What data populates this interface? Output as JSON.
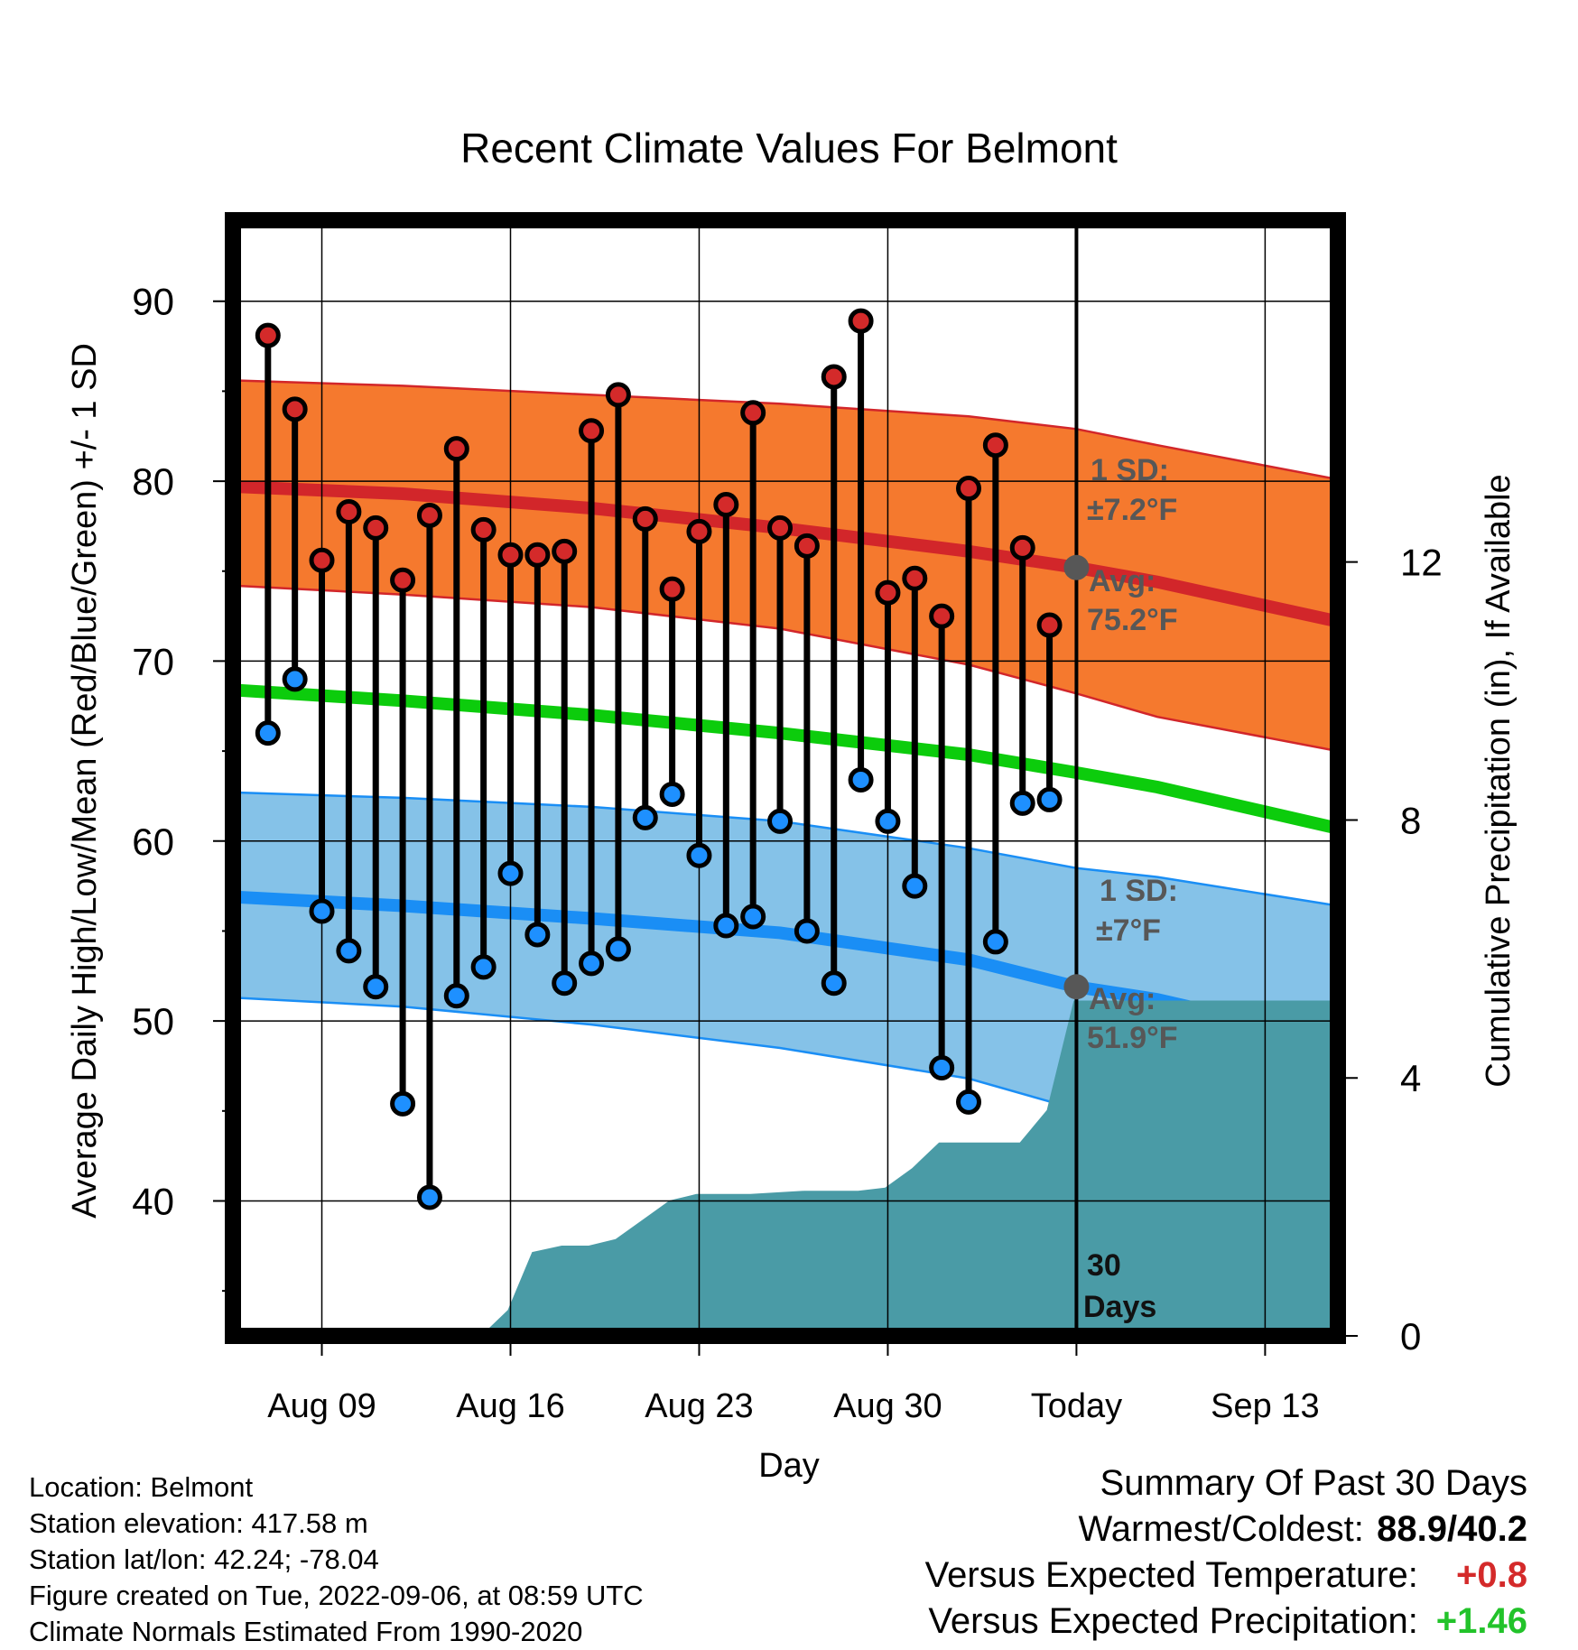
{
  "chart_data": {
    "type": "line",
    "title": "Recent Climate Values For Belmont",
    "xlabel": "Day",
    "ylabel": "Average Daily High/Low/Mean (Red/Blue/Green) +/- 1 SD",
    "y2label": "Cumulative Precipitation (in), If Available",
    "ylim": [
      32.5,
      94.5
    ],
    "y2lim": [
      0,
      17.3
    ],
    "yticks": [
      40,
      50,
      60,
      70,
      80,
      90
    ],
    "y2ticks": [
      0,
      4,
      8,
      12
    ],
    "x_tick_labels": [
      "Aug 09",
      "Aug 16",
      "Aug 23",
      "Aug 30",
      "Today",
      "Sep 13"
    ],
    "x_tick_days": [
      0,
      7,
      14,
      21,
      28,
      35
    ],
    "x_range_days": [
      -3.3,
      37.7
    ],
    "grid": true,
    "today_day": 28,
    "today_label": "30 Days",
    "days_observed": [
      -2,
      -1,
      0,
      1,
      2,
      3,
      4,
      5,
      6,
      7,
      8,
      9,
      10,
      11,
      12,
      13,
      14,
      15,
      16,
      17,
      18,
      19,
      20,
      21,
      22,
      23,
      24,
      25,
      26,
      27
    ],
    "observed_high": [
      88.1,
      84.0,
      75.6,
      78.3,
      77.4,
      74.5,
      78.1,
      81.8,
      77.3,
      75.9,
      75.9,
      76.1,
      82.8,
      84.8,
      77.9,
      74.0,
      77.2,
      78.7,
      83.8,
      77.4,
      76.4,
      85.8,
      88.9,
      73.8,
      74.6,
      72.5,
      79.6,
      82.0,
      76.3,
      72.0
    ],
    "observed_low": [
      66.0,
      69.0,
      56.1,
      53.9,
      51.9,
      45.4,
      40.2,
      51.4,
      53.0,
      58.2,
      54.8,
      52.1,
      53.2,
      54.0,
      61.3,
      62.6,
      59.2,
      55.3,
      55.8,
      61.1,
      55.0,
      52.1,
      63.4,
      61.1,
      57.5,
      47.4,
      45.5,
      54.4,
      62.1,
      62.3
    ],
    "normals_days": [
      -3.3,
      3,
      10,
      17,
      24,
      28,
      31,
      37.7
    ],
    "normal_high": [
      79.7,
      79.3,
      78.5,
      77.4,
      76.1,
      75.2,
      74.4,
      72.2
    ],
    "normal_high_upper": [
      85.6,
      85.3,
      84.8,
      84.3,
      83.6,
      82.9,
      82.0,
      80.1
    ],
    "normal_high_lower": [
      74.2,
      73.7,
      73.0,
      71.8,
      69.8,
      68.2,
      66.9,
      65.0
    ],
    "normal_mean": [
      68.4,
      67.8,
      67.0,
      66.0,
      64.8,
      63.8,
      63.0,
      60.7
    ],
    "normal_low": [
      56.9,
      56.4,
      55.7,
      54.9,
      53.4,
      51.9,
      51.2,
      48.9
    ],
    "normal_low_upper": [
      62.7,
      62.4,
      61.9,
      61.1,
      59.6,
      58.5,
      58.0,
      56.4
    ],
    "normal_low_lower": [
      51.3,
      50.8,
      49.8,
      48.5,
      46.8,
      45.1,
      44.0,
      41.6
    ],
    "precip_days": [
      -3.3,
      5.9,
      6.9,
      7.8,
      8.9,
      9.9,
      10.9,
      11.9,
      12.9,
      13.9,
      14.9,
      15.9,
      17.9,
      18.9,
      19.9,
      20.9,
      21.9,
      22.9,
      23.9,
      24.9,
      25.9,
      26.9,
      27.9,
      37.7
    ],
    "precip_cumulative": [
      0,
      0,
      0.4,
      1.3,
      1.4,
      1.4,
      1.5,
      1.8,
      2.1,
      2.2,
      2.2,
      2.2,
      2.25,
      2.25,
      2.25,
      2.3,
      2.6,
      3.0,
      3.0,
      3.0,
      3.0,
      3.5,
      5.2,
      5.2
    ],
    "annotations": {
      "high_sd_label": "1 SD:",
      "high_sd_value": "±7.2°F",
      "high_avg_label": "Avg:",
      "high_avg_value": "75.2°F",
      "low_sd_label": "1 SD:",
      "low_sd_value": "±7°F",
      "low_avg_label": "Avg:",
      "low_avg_value": "51.9°F"
    },
    "colors": {
      "high_band": "#f5792e",
      "high_line": "#d2262a",
      "mean_line": "#0ccc0c",
      "low_band": "#85c2e8",
      "low_line": "#1a8ef5",
      "precip": "#4a9ba6",
      "high_marker": "#d42a2a",
      "low_marker": "#1e90ff",
      "annotation": "#575757"
    }
  },
  "footer": {
    "location": "Location: Belmont",
    "elevation": "Station elevation: 417.58 m",
    "latlon": "Station lat/lon: 42.24; -78.04",
    "created": "Figure created on Tue, 2022-09-06, at 08:59 UTC",
    "normals": "Climate Normals Estimated From 1990-2020"
  },
  "summary": {
    "title": "Summary Of Past 30 Days",
    "warmest_label": "Warmest/Coldest:",
    "warmest_value": "88.9/40.2",
    "temp_label": "Versus Expected Temperature:",
    "temp_value": "+0.8",
    "precip_label": "Versus Expected Precipitation:",
    "precip_value": "+1.46"
  }
}
